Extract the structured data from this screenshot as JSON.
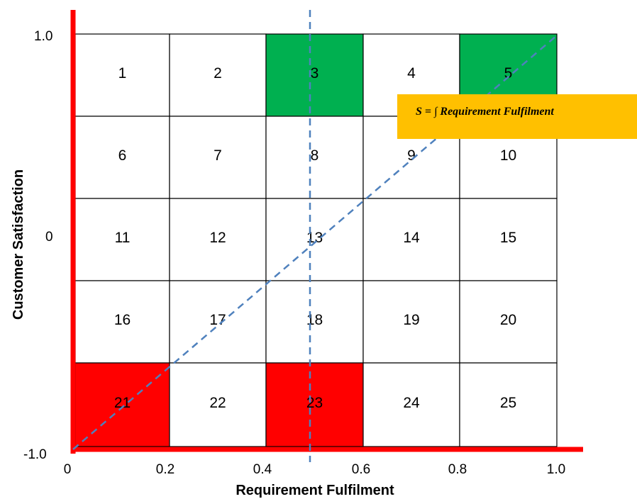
{
  "title": "",
  "x_axis": {
    "label": "Requirement Fulfilment",
    "ticks": [
      "0",
      "0.2",
      "0.4",
      "0.6",
      "0.8",
      "1.0"
    ]
  },
  "y_axis": {
    "label": "Customer Satisfaction",
    "ticks": [
      "1.0",
      "0",
      "-1.0"
    ]
  },
  "grid": {
    "rows": 5,
    "cols": 5,
    "cells": [
      "1",
      "2",
      "3",
      "4",
      "5",
      "6",
      "7",
      "8",
      "9",
      "10",
      "11",
      "12",
      "13",
      "14",
      "15",
      "16",
      "17",
      "18",
      "19",
      "20",
      "21",
      "22",
      "23",
      "24",
      "25"
    ],
    "highlight": {
      "green": [
        "3",
        "5"
      ],
      "red": [
        "21",
        "23"
      ]
    }
  },
  "annotation": {
    "formula": "S = ∫ Requirement Fulfilment"
  },
  "colors": {
    "axis": "#ff0000",
    "green": "#00b050",
    "red": "#ff0000",
    "dashed": "#4f81bd",
    "annotation_bg": "#ffc000",
    "grid_line": "#000000"
  }
}
